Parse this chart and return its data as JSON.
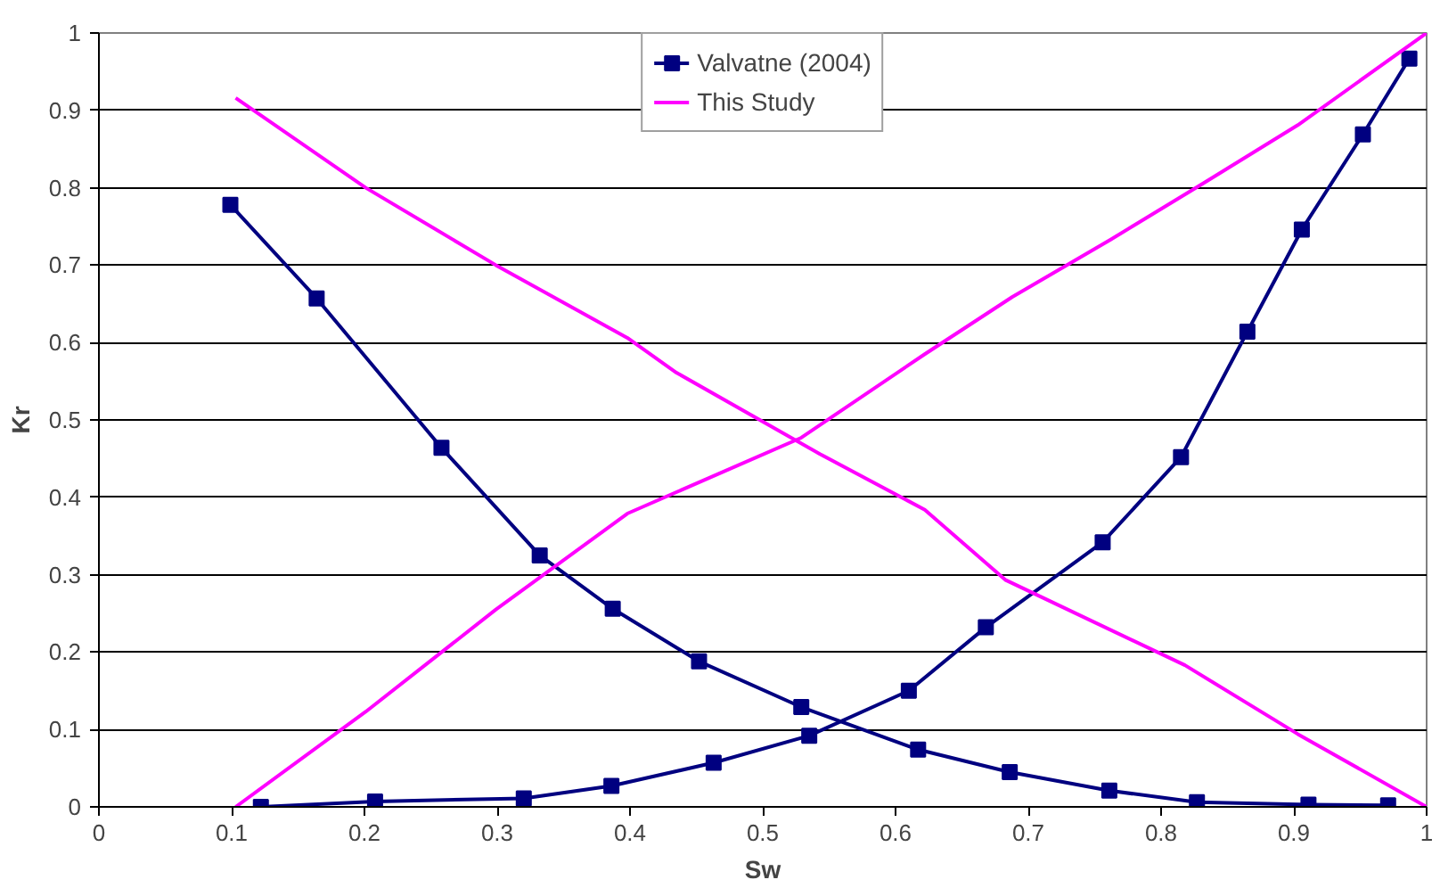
{
  "chart_data": {
    "type": "line",
    "xlabel": "Sw",
    "ylabel": "Kr",
    "xlim": [
      0,
      1
    ],
    "ylim": [
      0,
      1
    ],
    "xticks": [
      0,
      0.1,
      0.2,
      0.3,
      0.4,
      0.5,
      0.6,
      0.7,
      0.8,
      0.9,
      1
    ],
    "yticks": [
      0,
      0.1,
      0.2,
      0.3,
      0.4,
      0.5,
      0.6,
      0.7,
      0.8,
      0.9,
      1
    ],
    "grid": "y",
    "legend": "top",
    "series": [
      {
        "name": "Valvatne (2004)",
        "color": "#000080",
        "marker": "square",
        "x": [
          0.099,
          0.164,
          0.258,
          0.332,
          0.387,
          0.452,
          0.529,
          0.617,
          0.686,
          0.761,
          0.827,
          0.911,
          0.971
        ],
        "values": [
          0.778,
          0.657,
          0.464,
          0.325,
          0.256,
          0.188,
          0.129,
          0.074,
          0.045,
          0.021,
          0.006,
          0.003,
          0.002
        ]
      },
      {
        "color": "#000080",
        "marker": "square",
        "x": [
          0.122,
          0.208,
          0.32,
          0.386,
          0.463,
          0.535,
          0.61,
          0.668,
          0.756,
          0.815,
          0.865,
          0.906,
          0.952,
          0.987
        ],
        "values": [
          0.0,
          0.007,
          0.011,
          0.027,
          0.057,
          0.092,
          0.15,
          0.232,
          0.342,
          0.452,
          0.614,
          0.746,
          0.869,
          0.967
        ]
      },
      {
        "name": "This Study",
        "color": "#ff00ff",
        "marker": "none",
        "x": [
          0.103,
          0.201,
          0.299,
          0.398,
          0.435,
          0.543,
          0.622,
          0.683,
          0.818,
          0.903,
          1.0
        ],
        "values": [
          0.916,
          0.8,
          0.7,
          0.606,
          0.561,
          0.456,
          0.384,
          0.293,
          0.183,
          0.094,
          0.0
        ]
      },
      {
        "color": "#ff00ff",
        "marker": "none",
        "x": [
          0.103,
          0.201,
          0.299,
          0.398,
          0.529,
          0.622,
          0.688,
          0.762,
          0.833,
          0.903,
          1.0
        ],
        "values": [
          0.0,
          0.123,
          0.255,
          0.379,
          0.477,
          0.585,
          0.659,
          0.733,
          0.807,
          0.881,
          1.0
        ]
      }
    ]
  }
}
